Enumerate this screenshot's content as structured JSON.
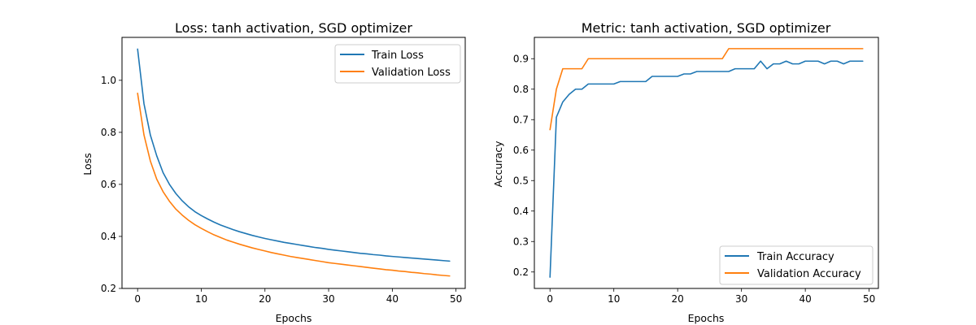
{
  "figure": {
    "background": "#ffffff"
  },
  "chart_data": [
    {
      "type": "line",
      "title": "Loss: tanh activation, SGD optimizer",
      "xlabel": "Epochs",
      "ylabel": "Loss",
      "xlim": [
        -2.45,
        51.45
      ],
      "ylim": [
        0.2,
        1.165
      ],
      "xticks": [
        0,
        10,
        20,
        30,
        40,
        50
      ],
      "yticks": [
        0.2,
        0.4,
        0.6,
        0.8,
        1.0
      ],
      "ytick_labels": [
        "0.2",
        "0.4",
        "0.6",
        "0.8",
        "1.0"
      ],
      "grid": false,
      "legend": "top-right",
      "x": [
        0,
        1,
        2,
        3,
        4,
        5,
        6,
        7,
        8,
        9,
        10,
        11,
        12,
        13,
        14,
        15,
        16,
        17,
        18,
        19,
        20,
        21,
        22,
        23,
        24,
        25,
        26,
        27,
        28,
        29,
        30,
        31,
        32,
        33,
        34,
        35,
        36,
        37,
        38,
        39,
        40,
        41,
        42,
        43,
        44,
        45,
        46,
        47,
        48,
        49
      ],
      "series": [
        {
          "name": "Train Loss",
          "color": "#1f77b4",
          "values": [
            1.12,
            0.91,
            0.79,
            0.71,
            0.645,
            0.6,
            0.565,
            0.537,
            0.514,
            0.495,
            0.48,
            0.467,
            0.455,
            0.444,
            0.435,
            0.426,
            0.418,
            0.411,
            0.404,
            0.398,
            0.392,
            0.387,
            0.382,
            0.377,
            0.373,
            0.369,
            0.365,
            0.361,
            0.357,
            0.354,
            0.35,
            0.347,
            0.344,
            0.341,
            0.338,
            0.335,
            0.333,
            0.33,
            0.328,
            0.325,
            0.323,
            0.321,
            0.319,
            0.317,
            0.315,
            0.313,
            0.311,
            0.309,
            0.307,
            0.305
          ]
        },
        {
          "name": "Validation Loss",
          "color": "#ff7f0e",
          "values": [
            0.95,
            0.79,
            0.69,
            0.62,
            0.572,
            0.535,
            0.505,
            0.482,
            0.462,
            0.445,
            0.431,
            0.418,
            0.406,
            0.396,
            0.386,
            0.378,
            0.37,
            0.363,
            0.356,
            0.35,
            0.344,
            0.338,
            0.333,
            0.328,
            0.323,
            0.319,
            0.315,
            0.311,
            0.307,
            0.303,
            0.299,
            0.296,
            0.293,
            0.29,
            0.287,
            0.284,
            0.281,
            0.278,
            0.275,
            0.272,
            0.27,
            0.267,
            0.265,
            0.262,
            0.26,
            0.257,
            0.255,
            0.252,
            0.25,
            0.248
          ]
        }
      ]
    },
    {
      "type": "line",
      "title": "Metric: tanh activation, SGD optimizer",
      "xlabel": "Epochs",
      "ylabel": "Accuracy",
      "xlim": [
        -2.45,
        51.45
      ],
      "ylim": [
        0.146,
        0.97
      ],
      "xticks": [
        0,
        10,
        20,
        30,
        40,
        50
      ],
      "yticks": [
        0.2,
        0.3,
        0.4,
        0.5,
        0.6,
        0.7,
        0.8,
        0.9
      ],
      "ytick_labels": [
        "0.2",
        "0.3",
        "0.4",
        "0.5",
        "0.6",
        "0.7",
        "0.8",
        "0.9"
      ],
      "grid": false,
      "legend": "bottom-right",
      "x": [
        0,
        1,
        2,
        3,
        4,
        5,
        6,
        7,
        8,
        9,
        10,
        11,
        12,
        13,
        14,
        15,
        16,
        17,
        18,
        19,
        20,
        21,
        22,
        23,
        24,
        25,
        26,
        27,
        28,
        29,
        30,
        31,
        32,
        33,
        34,
        35,
        36,
        37,
        38,
        39,
        40,
        41,
        42,
        43,
        44,
        45,
        46,
        47,
        48,
        49
      ],
      "series": [
        {
          "name": "Train Accuracy",
          "color": "#1f77b4",
          "values": [
            0.183,
            0.708,
            0.758,
            0.783,
            0.8,
            0.8,
            0.817,
            0.817,
            0.817,
            0.817,
            0.817,
            0.825,
            0.825,
            0.825,
            0.825,
            0.825,
            0.842,
            0.842,
            0.842,
            0.842,
            0.842,
            0.85,
            0.85,
            0.858,
            0.858,
            0.858,
            0.858,
            0.858,
            0.858,
            0.867,
            0.867,
            0.867,
            0.867,
            0.892,
            0.867,
            0.883,
            0.883,
            0.892,
            0.883,
            0.883,
            0.892,
            0.892,
            0.892,
            0.883,
            0.892,
            0.892,
            0.883,
            0.892,
            0.892,
            0.892
          ]
        },
        {
          "name": "Validation Accuracy",
          "color": "#ff7f0e",
          "values": [
            0.667,
            0.8,
            0.867,
            0.867,
            0.867,
            0.867,
            0.9,
            0.9,
            0.9,
            0.9,
            0.9,
            0.9,
            0.9,
            0.9,
            0.9,
            0.9,
            0.9,
            0.9,
            0.9,
            0.9,
            0.9,
            0.9,
            0.9,
            0.9,
            0.9,
            0.9,
            0.9,
            0.9,
            0.933,
            0.933,
            0.933,
            0.933,
            0.933,
            0.933,
            0.933,
            0.933,
            0.933,
            0.933,
            0.933,
            0.933,
            0.933,
            0.933,
            0.933,
            0.933,
            0.933,
            0.933,
            0.933,
            0.933,
            0.933,
            0.933
          ]
        }
      ]
    }
  ]
}
